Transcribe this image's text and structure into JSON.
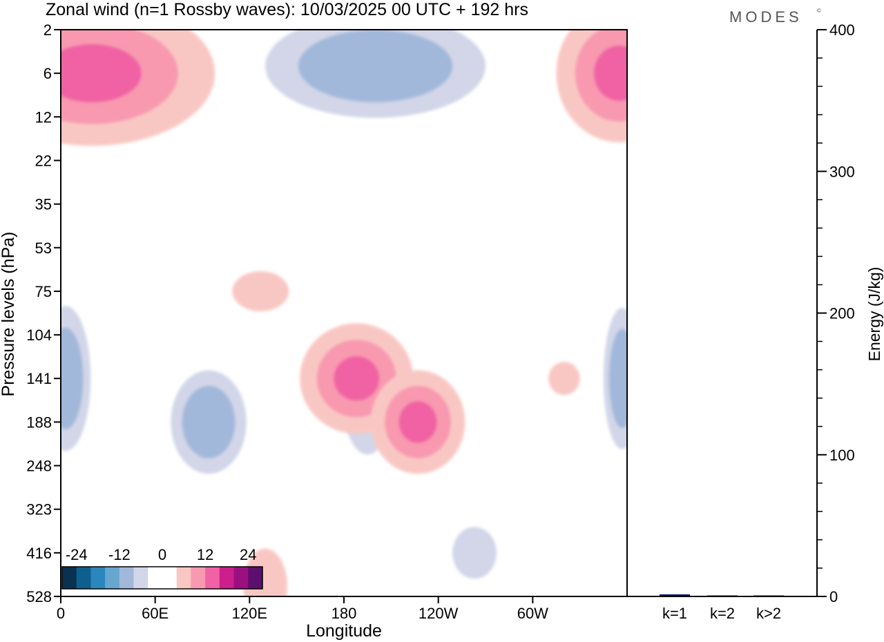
{
  "title": "Zonal wind (n=1 Rossby waves):  10/03/2025  00 UTC  + 192 hrs",
  "brand": "MODES",
  "brand_mark": "©",
  "chart_data": [
    {
      "type": "heatmap",
      "kind": "filled-contour",
      "xlabel": "Longitude",
      "ylabel": "Pressure levels (hPa)",
      "x_ticks": [
        "0",
        "60E",
        "120E",
        "180",
        "120W",
        "60W"
      ],
      "x_tick_values_deg": [
        0,
        60,
        120,
        180,
        240,
        300
      ],
      "xlim_deg": [
        0,
        360
      ],
      "y_ticks": [
        "2",
        "6",
        "12",
        "22",
        "35",
        "53",
        "75",
        "104",
        "141",
        "188",
        "248",
        "323",
        "416",
        "528"
      ],
      "y_axis": "pressure levels, top to bottom",
      "colorbar": {
        "tick_labels": [
          "-24",
          "-12",
          "0",
          "12",
          "24"
        ],
        "colors": [
          "#0a3150",
          "#0e5f8e",
          "#2b86bd",
          "#66a6cf",
          "#a2b8da",
          "#d2d6e8",
          "#ffffff",
          "#ffffff",
          "#f9c7c3",
          "#f899b0",
          "#f062a3",
          "#cc1f8b",
          "#9c0f80",
          "#5c0f6e"
        ]
      },
      "features": [
        {
          "sign": "positive",
          "max_level": 3,
          "lon_center": 20,
          "level_center": 6,
          "note": "stratospheric maximum near the western edge"
        },
        {
          "sign": "positive",
          "max_level": 3,
          "lon_center": 355,
          "level_center": 6,
          "note": "stratospheric maximum near the eastern edge"
        },
        {
          "sign": "negative",
          "max_level": 2,
          "lon_center": 200,
          "level_center": 5
        },
        {
          "sign": "negative",
          "max_level": 1,
          "lon_center": 195,
          "level_center": 160
        },
        {
          "sign": "negative",
          "max_level": 2,
          "lon_center": 94,
          "level_center": 188
        },
        {
          "sign": "negative",
          "max_level": 2,
          "lon_center": 3,
          "level_center": 141
        },
        {
          "sign": "negative",
          "max_level": 2,
          "lon_center": 357,
          "level_center": 141
        },
        {
          "sign": "positive",
          "max_level": 1,
          "lon_center": 127,
          "level_center": 75
        },
        {
          "sign": "positive",
          "max_level": 3,
          "lon_center": 188,
          "level_center": 141
        },
        {
          "sign": "positive",
          "max_level": 3,
          "lon_center": 227,
          "level_center": 188
        },
        {
          "sign": "positive",
          "max_level": 1,
          "lon_center": 130,
          "level_center": 500
        },
        {
          "sign": "positive",
          "max_level": 1,
          "lon_center": 320,
          "level_center": 141
        },
        {
          "sign": "negative",
          "max_level": 1,
          "lon_center": 263,
          "level_center": 416
        }
      ]
    },
    {
      "type": "bar",
      "categories": [
        "k=1",
        "k=2",
        "k>2"
      ],
      "values": [
        1.5,
        0.3,
        0.5
      ],
      "ylabel": "Energy (J/kg)",
      "ylim": [
        0,
        400
      ],
      "y_ticks": [
        "0",
        "100",
        "200",
        "300",
        "400"
      ],
      "y_tick_values": [
        0,
        100,
        200,
        300,
        400
      ],
      "bar_color": "#0c1a7a"
    }
  ]
}
